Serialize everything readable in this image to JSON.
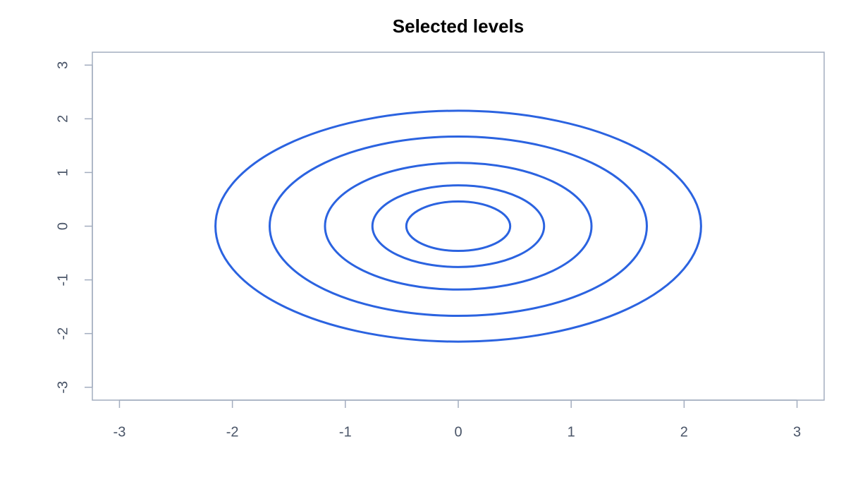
{
  "chart_data": {
    "type": "contour",
    "title": "Selected levels",
    "values": [
      0.46,
      0.76,
      1.18,
      1.67,
      2.15
    ],
    "color": "#2b63e0",
    "xlim": [
      -3.24,
      3.24
    ],
    "ylim": [
      -3.24,
      3.24
    ],
    "xticks": [
      -3,
      -2,
      -1,
      0,
      1,
      2,
      3
    ],
    "yticks": [
      -3,
      -2,
      -1,
      0,
      1,
      2,
      3
    ]
  }
}
